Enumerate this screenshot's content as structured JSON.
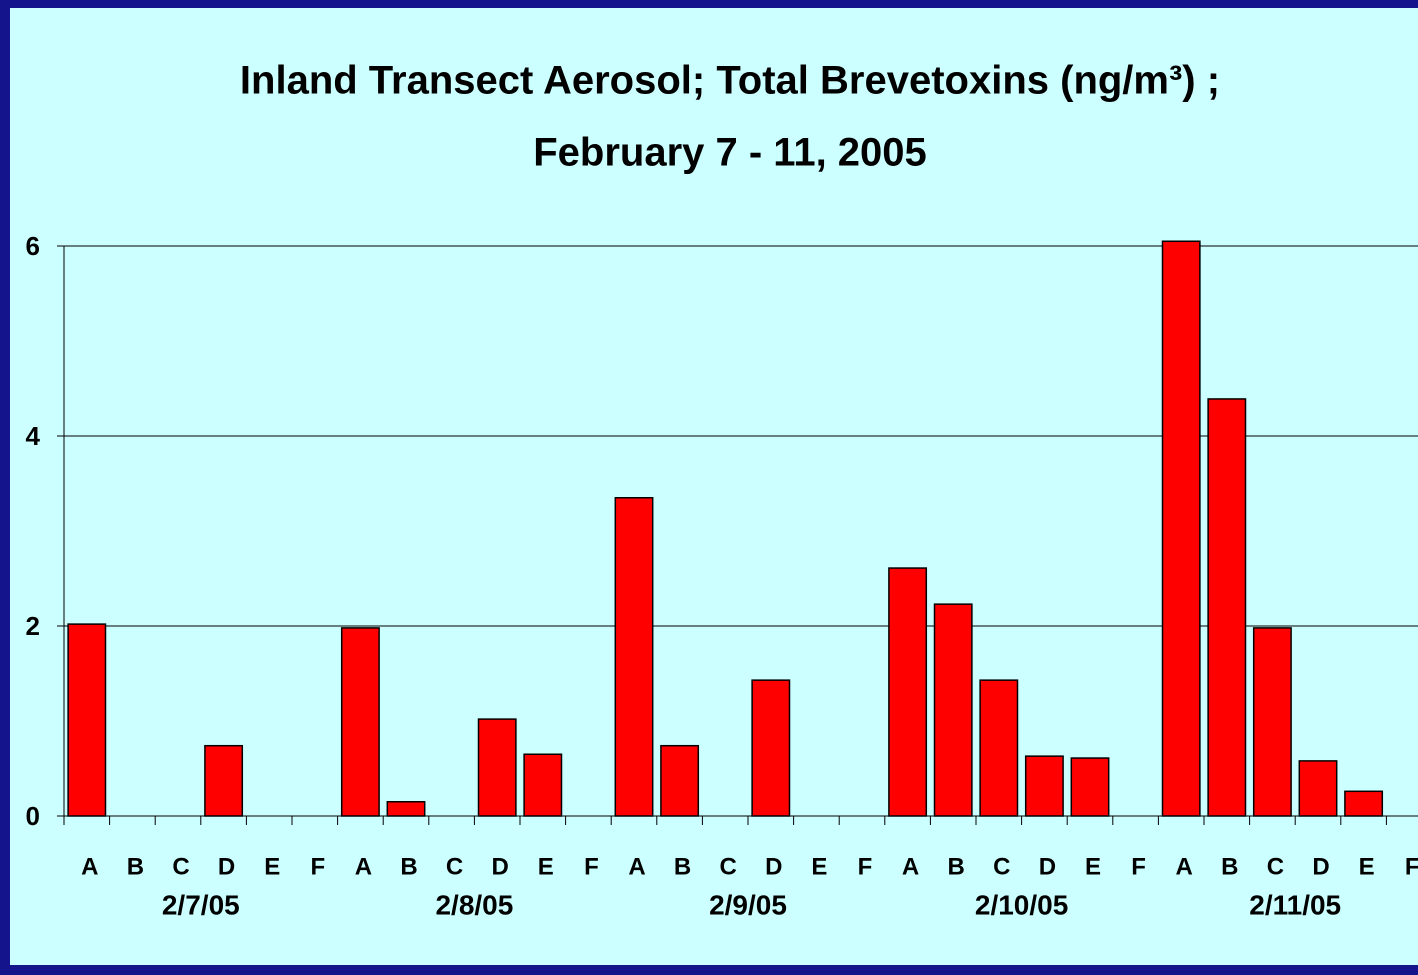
{
  "chart_data": {
    "type": "bar",
    "title": [
      "Inland Transect Aerosol; Total Brevetoxins (ng/m³) ;",
      "February 7 - 11, 2005"
    ],
    "categories": [
      "A",
      "B",
      "C",
      "D",
      "E",
      "F",
      "A",
      "B",
      "C",
      "D",
      "E",
      "F",
      "A",
      "B",
      "C",
      "D",
      "E",
      "F",
      "A",
      "B",
      "C",
      "D",
      "E",
      "F",
      "A",
      "B",
      "C",
      "D",
      "E",
      "F"
    ],
    "groups": [
      "2/7/05",
      "2/8/05",
      "2/9/05",
      "2/10/05",
      "2/11/05"
    ],
    "values": [
      2.02,
      0,
      0,
      0.74,
      0,
      0,
      1.98,
      0.15,
      0,
      1.02,
      0.65,
      0,
      3.35,
      0.74,
      0,
      1.43,
      0,
      0,
      2.61,
      2.23,
      1.43,
      0.63,
      0.61,
      0,
      6.05,
      4.39,
      1.98,
      0.58,
      0.26,
      0
    ],
    "color": "#ff0000",
    "ylim": [
      0,
      6
    ],
    "yticks": [
      0,
      2,
      4,
      6
    ],
    "grid": true
  }
}
